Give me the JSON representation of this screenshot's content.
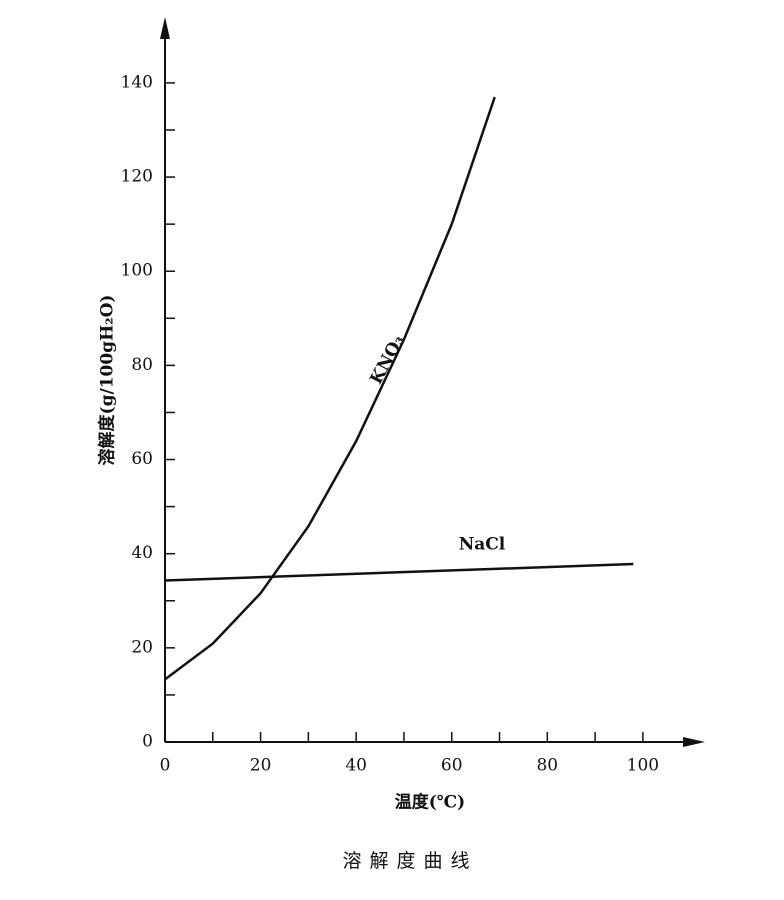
{
  "chart_data": {
    "type": "line",
    "y_label": "溶解度(g/100gH₂O)",
    "x_label": "温度(℃)",
    "caption": "溶解度曲线",
    "series": [
      {
        "name": "KNO₃",
        "color": "#111111",
        "x": [
          0,
          10,
          20,
          30,
          40,
          50,
          60,
          69
        ],
        "values": [
          13.3,
          20.9,
          31.6,
          45.8,
          63.9,
          85.5,
          110,
          137
        ]
      },
      {
        "name": "NaCl",
        "color": "#111111",
        "x": [
          0,
          98
        ],
        "values": [
          34.3,
          37.8
        ]
      }
    ],
    "xlim": [
      0,
      113
    ],
    "ylim": [
      0,
      154
    ],
    "xticks": [
      0,
      20,
      40,
      60,
      80,
      100
    ],
    "yticks": [
      0,
      20,
      40,
      60,
      80,
      100,
      120,
      140
    ],
    "x_minor_ticks": [
      10,
      30,
      50,
      70,
      90
    ],
    "y_minor_ticks": [
      10,
      30,
      50,
      70,
      90,
      110,
      130
    ],
    "grid": false
  }
}
